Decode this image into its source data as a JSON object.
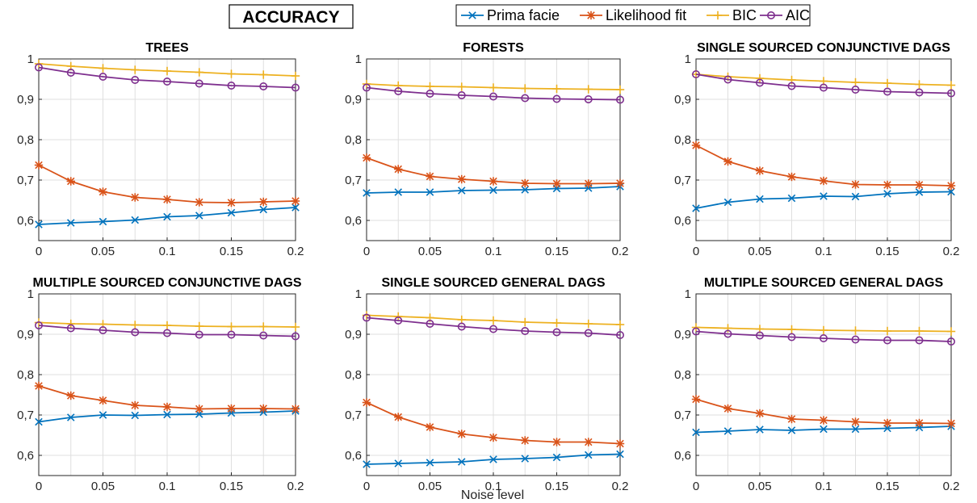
{
  "figure": {
    "title": "ACCURACY",
    "xlabel": "Noise level"
  },
  "legend": {
    "placement": "top",
    "items": [
      {
        "name": "Prima facie",
        "color": "#0072BD",
        "marker": "x"
      },
      {
        "name": "Likelihood fit",
        "color": "#D95319",
        "marker": "asterisk"
      },
      {
        "name": "BIC",
        "color": "#EDB120",
        "marker": "plus"
      },
      {
        "name": "AIC",
        "color": "#7E2F8E",
        "marker": "circle"
      }
    ]
  },
  "chart_data": [
    {
      "type": "line",
      "title": "TREES",
      "x": [
        0,
        0.025,
        0.05,
        0.075,
        0.1,
        0.125,
        0.15,
        0.175,
        0.2
      ],
      "xlim": [
        0,
        0.2
      ],
      "ylim": [
        0.55,
        1
      ],
      "xticks": [
        "0",
        "0.05",
        "0.1",
        "0.15",
        "0.2"
      ],
      "yticks": [
        "0,6",
        "0,7",
        "0,8",
        "0,9",
        "1"
      ],
      "grid": true,
      "series": [
        {
          "name": "Prima facie",
          "values": [
            0.59,
            0.594,
            0.597,
            0.601,
            0.609,
            0.612,
            0.619,
            0.627,
            0.632
          ]
        },
        {
          "name": "Likelihood fit",
          "values": [
            0.737,
            0.697,
            0.671,
            0.657,
            0.652,
            0.645,
            0.644,
            0.646,
            0.648
          ]
        },
        {
          "name": "BIC",
          "values": [
            0.988,
            0.982,
            0.977,
            0.973,
            0.97,
            0.967,
            0.963,
            0.961,
            0.958
          ]
        },
        {
          "name": "AIC",
          "values": [
            0.979,
            0.966,
            0.956,
            0.948,
            0.944,
            0.939,
            0.934,
            0.932,
            0.929
          ]
        }
      ]
    },
    {
      "type": "line",
      "title": "FORESTS",
      "x": [
        0,
        0.025,
        0.05,
        0.075,
        0.1,
        0.125,
        0.15,
        0.175,
        0.2
      ],
      "xlim": [
        0,
        0.2
      ],
      "ylim": [
        0.55,
        1
      ],
      "xticks": [
        "0",
        "0.05",
        "0.1",
        "0.15",
        "0.2"
      ],
      "yticks": [
        "0,6",
        "0,7",
        "0,8",
        "0,9",
        "1"
      ],
      "grid": true,
      "series": [
        {
          "name": "Prima facie",
          "values": [
            0.668,
            0.67,
            0.67,
            0.674,
            0.675,
            0.676,
            0.679,
            0.68,
            0.684
          ]
        },
        {
          "name": "Likelihood fit",
          "values": [
            0.755,
            0.727,
            0.709,
            0.702,
            0.697,
            0.692,
            0.691,
            0.691,
            0.692
          ]
        },
        {
          "name": "BIC",
          "values": [
            0.938,
            0.934,
            0.932,
            0.931,
            0.929,
            0.927,
            0.926,
            0.925,
            0.924
          ]
        },
        {
          "name": "AIC",
          "values": [
            0.929,
            0.92,
            0.914,
            0.91,
            0.907,
            0.903,
            0.901,
            0.9,
            0.899
          ]
        }
      ]
    },
    {
      "type": "line",
      "title": "SINGLE SOURCED CONJUNCTIVE DAGS",
      "x": [
        0,
        0.025,
        0.05,
        0.075,
        0.1,
        0.125,
        0.15,
        0.175,
        0.2
      ],
      "xlim": [
        0,
        0.2
      ],
      "ylim": [
        0.55,
        1
      ],
      "xticks": [
        "0",
        "0.05",
        "0.1",
        "0.15",
        "0.2"
      ],
      "yticks": [
        "0,6",
        "0,7",
        "0,8",
        "0,9",
        "1"
      ],
      "grid": true,
      "series": [
        {
          "name": "Prima facie",
          "values": [
            0.63,
            0.645,
            0.653,
            0.655,
            0.66,
            0.659,
            0.666,
            0.67,
            0.671
          ]
        },
        {
          "name": "Likelihood fit",
          "values": [
            0.786,
            0.746,
            0.723,
            0.708,
            0.698,
            0.689,
            0.688,
            0.688,
            0.686
          ]
        },
        {
          "name": "BIC",
          "values": [
            0.962,
            0.956,
            0.952,
            0.948,
            0.945,
            0.942,
            0.94,
            0.937,
            0.935
          ]
        },
        {
          "name": "AIC",
          "values": [
            0.962,
            0.949,
            0.941,
            0.933,
            0.929,
            0.924,
            0.919,
            0.917,
            0.915
          ]
        }
      ]
    },
    {
      "type": "line",
      "title": "MULTIPLE SOURCED CONJUNCTIVE DAGS",
      "x": [
        0,
        0.025,
        0.05,
        0.075,
        0.1,
        0.125,
        0.15,
        0.175,
        0.2
      ],
      "xlim": [
        0,
        0.2
      ],
      "ylim": [
        0.55,
        1
      ],
      "xticks": [
        "0",
        "0.05",
        "0.1",
        "0.15",
        "0.2"
      ],
      "yticks": [
        "0,6",
        "0,7",
        "0,8",
        "0,9",
        "1"
      ],
      "grid": true,
      "series": [
        {
          "name": "Prima facie",
          "values": [
            0.683,
            0.694,
            0.7,
            0.699,
            0.701,
            0.702,
            0.705,
            0.707,
            0.71
          ]
        },
        {
          "name": "Likelihood fit",
          "values": [
            0.772,
            0.748,
            0.736,
            0.724,
            0.72,
            0.715,
            0.716,
            0.716,
            0.715
          ]
        },
        {
          "name": "BIC",
          "values": [
            0.929,
            0.926,
            0.925,
            0.923,
            0.922,
            0.92,
            0.919,
            0.919,
            0.918
          ]
        },
        {
          "name": "AIC",
          "values": [
            0.922,
            0.915,
            0.91,
            0.905,
            0.903,
            0.899,
            0.899,
            0.897,
            0.895
          ]
        }
      ]
    },
    {
      "type": "line",
      "title": "SINGLE SOURCED GENERAL DAGS",
      "x": [
        0,
        0.025,
        0.05,
        0.075,
        0.1,
        0.125,
        0.15,
        0.175,
        0.2
      ],
      "xlim": [
        0,
        0.2
      ],
      "ylim": [
        0.55,
        1
      ],
      "xticks": [
        "0",
        "0.05",
        "0.1",
        "0.15",
        "0.2"
      ],
      "yticks": [
        "0,6",
        "0,7",
        "0,8",
        "0,9",
        "1"
      ],
      "grid": true,
      "series": [
        {
          "name": "Prima facie",
          "values": [
            0.578,
            0.58,
            0.582,
            0.584,
            0.59,
            0.592,
            0.595,
            0.601,
            0.603
          ]
        },
        {
          "name": "Likelihood fit",
          "values": [
            0.731,
            0.695,
            0.67,
            0.653,
            0.644,
            0.637,
            0.633,
            0.633,
            0.629
          ]
        },
        {
          "name": "BIC",
          "values": [
            0.947,
            0.944,
            0.941,
            0.936,
            0.934,
            0.93,
            0.928,
            0.926,
            0.924
          ]
        },
        {
          "name": "AIC",
          "values": [
            0.941,
            0.934,
            0.926,
            0.919,
            0.913,
            0.908,
            0.905,
            0.903,
            0.898
          ]
        }
      ]
    },
    {
      "type": "line",
      "title": "MULTIPLE SOURCED GENERAL DAGS",
      "x": [
        0,
        0.025,
        0.05,
        0.075,
        0.1,
        0.125,
        0.15,
        0.175,
        0.2
      ],
      "xlim": [
        0,
        0.2
      ],
      "ylim": [
        0.55,
        1
      ],
      "xticks": [
        "0",
        "0.05",
        "0.1",
        "0.15",
        "0.2"
      ],
      "yticks": [
        "0,6",
        "0,7",
        "0,8",
        "0,9",
        "1"
      ],
      "grid": true,
      "series": [
        {
          "name": "Prima facie",
          "values": [
            0.657,
            0.66,
            0.664,
            0.662,
            0.665,
            0.665,
            0.667,
            0.669,
            0.672
          ]
        },
        {
          "name": "Likelihood fit",
          "values": [
            0.739,
            0.716,
            0.704,
            0.69,
            0.687,
            0.683,
            0.68,
            0.68,
            0.679
          ]
        },
        {
          "name": "BIC",
          "values": [
            0.917,
            0.915,
            0.913,
            0.912,
            0.91,
            0.909,
            0.908,
            0.908,
            0.907
          ]
        },
        {
          "name": "AIC",
          "values": [
            0.907,
            0.901,
            0.897,
            0.893,
            0.89,
            0.887,
            0.885,
            0.885,
            0.882
          ]
        }
      ]
    }
  ]
}
